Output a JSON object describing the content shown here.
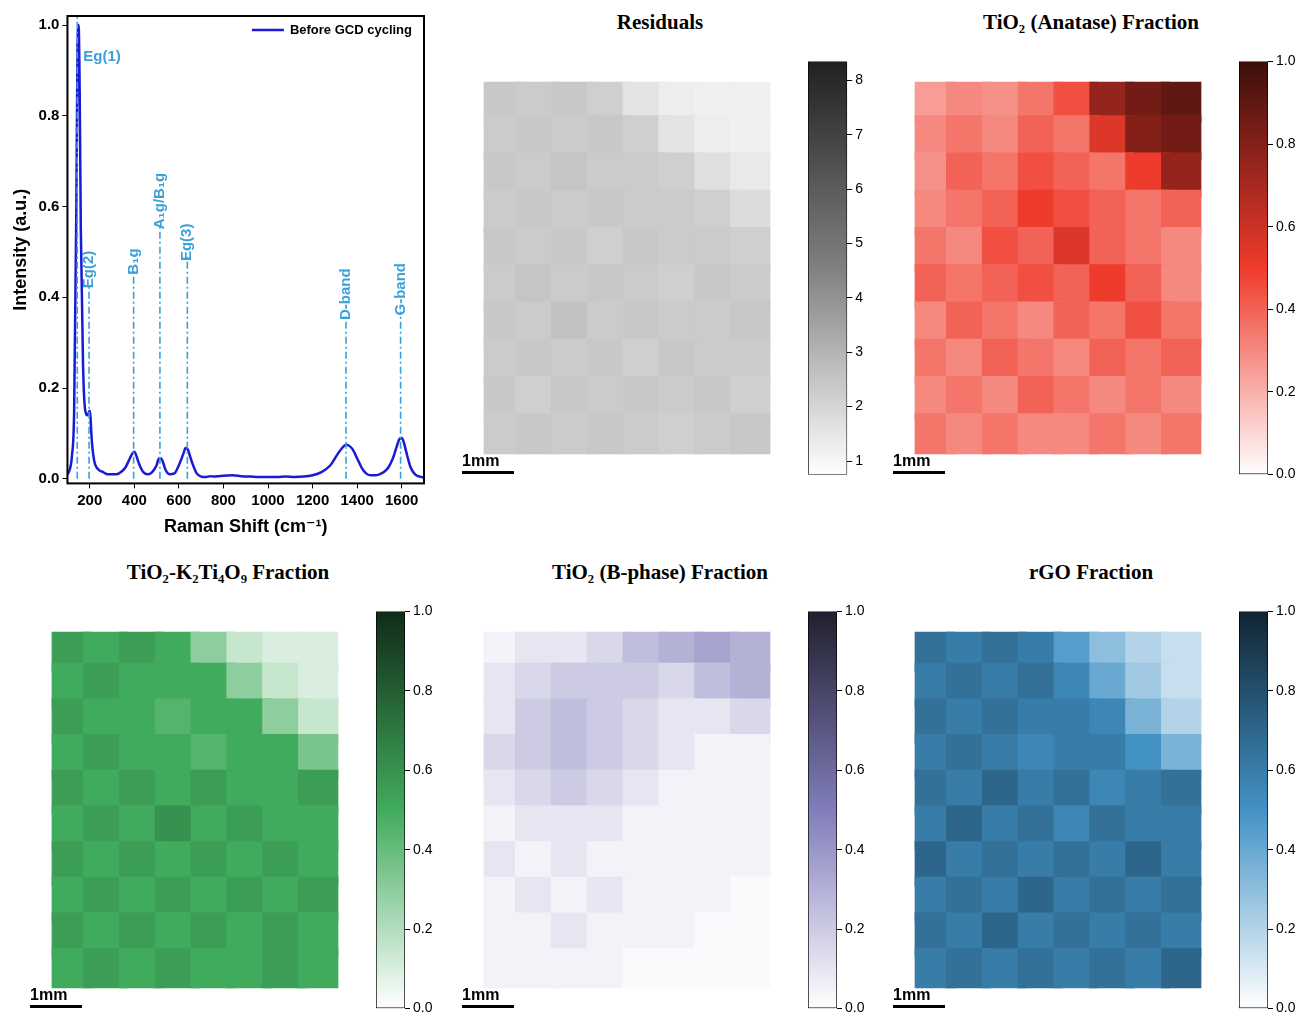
{
  "chart_data": [
    {
      "type": "line",
      "x_label": "Raman Shift (cm⁻¹)",
      "y_label": "Intensity (a.u.)",
      "x": [
        100,
        110,
        120,
        130,
        140,
        145,
        150,
        155,
        160,
        170,
        180,
        190,
        200,
        210,
        220,
        240,
        260,
        280,
        300,
        320,
        340,
        360,
        380,
        390,
        400,
        410,
        420,
        440,
        460,
        480,
        500,
        510,
        520,
        530,
        540,
        560,
        580,
        600,
        620,
        630,
        640,
        650,
        660,
        680,
        700,
        720,
        740,
        760,
        780,
        800,
        840,
        880,
        920,
        960,
        1000,
        1040,
        1080,
        1120,
        1160,
        1200,
        1240,
        1280,
        1300,
        1320,
        1340,
        1350,
        1360,
        1380,
        1400,
        1420,
        1440,
        1460,
        1480,
        1500,
        1520,
        1540,
        1560,
        1580,
        1590,
        1600,
        1610,
        1620,
        1640,
        1660,
        1680,
        1700
      ],
      "series": [
        {
          "name": "Before GCD cycling",
          "color": "#1a1ad6",
          "values": [
            0.01,
            0.02,
            0.05,
            0.15,
            0.6,
            0.95,
            1.0,
            0.85,
            0.55,
            0.25,
            0.15,
            0.14,
            0.15,
            0.08,
            0.04,
            0.02,
            0.015,
            0.01,
            0.01,
            0.01,
            0.015,
            0.025,
            0.045,
            0.055,
            0.06,
            0.05,
            0.035,
            0.015,
            0.01,
            0.015,
            0.03,
            0.045,
            0.045,
            0.035,
            0.02,
            0.01,
            0.012,
            0.03,
            0.055,
            0.068,
            0.065,
            0.05,
            0.035,
            0.012,
            0.005,
            0.004,
            0.006,
            0.005,
            0.006,
            0.007,
            0.008,
            0.006,
            0.005,
            0.004,
            0.004,
            0.004,
            0.005,
            0.004,
            0.005,
            0.008,
            0.015,
            0.03,
            0.045,
            0.06,
            0.072,
            0.075,
            0.074,
            0.065,
            0.045,
            0.025,
            0.012,
            0.008,
            0.008,
            0.01,
            0.015,
            0.025,
            0.045,
            0.075,
            0.088,
            0.09,
            0.08,
            0.06,
            0.025,
            0.01,
            0.005,
            0.003
          ]
        }
      ],
      "xlim": [
        100,
        1700
      ],
      "xticks": [
        200,
        400,
        600,
        800,
        1000,
        1200,
        1400,
        1600
      ],
      "ylim": [
        -0.01,
        1.02
      ],
      "yticks": [
        {
          "value": 0,
          "label": "0.0"
        },
        0.2,
        0.4,
        0.6,
        0.8,
        {
          "value": 1,
          "label": "1.0"
        }
      ],
      "legend": "upper right",
      "annotations": [
        {
          "text": "Eg(1)",
          "x": 144,
          "y": 0.93
        },
        {
          "text": "Eg(2)",
          "x": 197,
          "y": 0.42
        },
        {
          "text": "B₁g",
          "x": 397,
          "y": 0.45
        },
        {
          "text": "A₁g/B₁g",
          "x": 515,
          "y": 0.55
        },
        {
          "text": "Eg(3)",
          "x": 638,
          "y": 0.48
        },
        {
          "text": "D-band",
          "x": 1350,
          "y": 0.35
        },
        {
          "text": "G-band",
          "x": 1595,
          "y": 0.36
        }
      ]
    },
    {
      "type": "heatmap",
      "title": "Residuals",
      "color": "#808080",
      "scale_bar": "1mm",
      "tick_labels": false,
      "colorbar": {
        "lim": [
          0.75,
          8.35
        ],
        "ticks": [
          1,
          2,
          3,
          4,
          5,
          6,
          7,
          8
        ]
      },
      "cells": [
        [
          2.4,
          2.3,
          2.4,
          2.2,
          1.6,
          1.3,
          1.2,
          1.2
        ],
        [
          2.3,
          2.4,
          2.3,
          2.4,
          2.2,
          1.6,
          1.3,
          1.2
        ],
        [
          2.4,
          2.3,
          2.5,
          2.3,
          2.3,
          2.2,
          1.7,
          1.4
        ],
        [
          2.3,
          2.4,
          2.3,
          2.4,
          2.3,
          2.3,
          2.2,
          1.8
        ],
        [
          2.4,
          2.3,
          2.4,
          2.2,
          2.4,
          2.3,
          2.3,
          2.2
        ],
        [
          2.3,
          2.5,
          2.3,
          2.4,
          2.3,
          2.2,
          2.4,
          2.3
        ],
        [
          2.4,
          2.3,
          2.6,
          2.3,
          2.4,
          2.3,
          2.3,
          2.4
        ],
        [
          2.3,
          2.4,
          2.3,
          2.4,
          2.2,
          2.4,
          2.3,
          2.3
        ],
        [
          2.4,
          2.2,
          2.4,
          2.3,
          2.4,
          2.3,
          2.4,
          2.2
        ],
        [
          2.3,
          2.4,
          2.3,
          2.4,
          2.3,
          2.2,
          2.3,
          2.4
        ]
      ]
    },
    {
      "type": "heatmap",
      "title": "TiO₂ (Anatase) Fraction",
      "color": "#ef3b2c",
      "scale_bar": "1mm",
      "tick_labels": false,
      "colorbar": {
        "lim": [
          0,
          1
        ],
        "ticks": [
          {
            "value": 0,
            "label": "0.0"
          },
          0.2,
          0.4,
          0.6,
          0.8,
          {
            "value": 1,
            "label": "1.0"
          }
        ]
      },
      "cells": [
        [
          0.25,
          0.3,
          0.28,
          0.35,
          0.45,
          0.75,
          0.85,
          0.9
        ],
        [
          0.3,
          0.35,
          0.3,
          0.4,
          0.35,
          0.55,
          0.8,
          0.85
        ],
        [
          0.28,
          0.4,
          0.35,
          0.45,
          0.4,
          0.35,
          0.5,
          0.75
        ],
        [
          0.3,
          0.35,
          0.4,
          0.5,
          0.45,
          0.4,
          0.35,
          0.4
        ],
        [
          0.35,
          0.3,
          0.45,
          0.4,
          0.55,
          0.4,
          0.35,
          0.3
        ],
        [
          0.4,
          0.35,
          0.4,
          0.45,
          0.4,
          0.5,
          0.4,
          0.3
        ],
        [
          0.3,
          0.4,
          0.35,
          0.3,
          0.4,
          0.35,
          0.45,
          0.35
        ],
        [
          0.35,
          0.3,
          0.4,
          0.35,
          0.3,
          0.4,
          0.35,
          0.4
        ],
        [
          0.3,
          0.35,
          0.3,
          0.4,
          0.35,
          0.3,
          0.35,
          0.3
        ],
        [
          0.35,
          0.3,
          0.35,
          0.3,
          0.3,
          0.35,
          0.3,
          0.35
        ]
      ]
    },
    {
      "type": "heatmap",
      "title": "TiO₂-K₂Ti₄O₉ Fraction",
      "color": "#41ab5d",
      "scale_bar": "1mm",
      "tick_labels": false,
      "colorbar": {
        "lim": [
          0,
          1
        ],
        "ticks": [
          {
            "value": 0,
            "label": "0.0"
          },
          0.2,
          0.4,
          0.6,
          0.8,
          {
            "value": 1,
            "label": "1.0"
          }
        ]
      },
      "cells": [
        [
          0.55,
          0.5,
          0.55,
          0.5,
          0.3,
          0.15,
          0.1,
          0.1
        ],
        [
          0.5,
          0.55,
          0.5,
          0.5,
          0.5,
          0.3,
          0.15,
          0.1
        ],
        [
          0.55,
          0.5,
          0.5,
          0.45,
          0.5,
          0.5,
          0.3,
          0.15
        ],
        [
          0.5,
          0.55,
          0.5,
          0.5,
          0.45,
          0.5,
          0.5,
          0.35
        ],
        [
          0.55,
          0.5,
          0.55,
          0.5,
          0.55,
          0.5,
          0.5,
          0.55
        ],
        [
          0.5,
          0.55,
          0.5,
          0.6,
          0.5,
          0.55,
          0.5,
          0.5
        ],
        [
          0.55,
          0.5,
          0.55,
          0.5,
          0.55,
          0.5,
          0.55,
          0.5
        ],
        [
          0.5,
          0.55,
          0.5,
          0.55,
          0.5,
          0.55,
          0.5,
          0.55
        ],
        [
          0.55,
          0.5,
          0.55,
          0.5,
          0.55,
          0.5,
          0.55,
          0.5
        ],
        [
          0.5,
          0.55,
          0.5,
          0.55,
          0.5,
          0.5,
          0.55,
          0.5
        ]
      ]
    },
    {
      "type": "heatmap",
      "title": "TiO₂ (B-phase) Fraction",
      "color": "#807dba",
      "scale_bar": "1mm",
      "tick_labels": false,
      "colorbar": {
        "lim": [
          0,
          1
        ],
        "ticks": [
          {
            "value": 0,
            "label": "0.0"
          },
          0.2,
          0.4,
          0.6,
          0.8,
          {
            "value": 1,
            "label": "1.0"
          }
        ]
      },
      "cells": [
        [
          0.05,
          0.1,
          0.1,
          0.15,
          0.25,
          0.3,
          0.35,
          0.3
        ],
        [
          0.1,
          0.15,
          0.2,
          0.2,
          0.2,
          0.15,
          0.25,
          0.3
        ],
        [
          0.1,
          0.2,
          0.25,
          0.2,
          0.15,
          0.1,
          0.1,
          0.15
        ],
        [
          0.15,
          0.2,
          0.25,
          0.2,
          0.15,
          0.1,
          0.05,
          0.05
        ],
        [
          0.1,
          0.15,
          0.2,
          0.15,
          0.1,
          0.05,
          0.05,
          0.05
        ],
        [
          0.05,
          0.1,
          0.1,
          0.1,
          0.05,
          0.05,
          0.05,
          0.05
        ],
        [
          0.1,
          0.05,
          0.1,
          0.05,
          0.05,
          0.05,
          0.05,
          0.05
        ],
        [
          0.05,
          0.1,
          0.05,
          0.1,
          0.05,
          0.05,
          0.05,
          0.02
        ],
        [
          0.05,
          0.05,
          0.1,
          0.05,
          0.05,
          0.05,
          0.02,
          0.02
        ],
        [
          0.05,
          0.05,
          0.05,
          0.05,
          0.02,
          0.02,
          0.02,
          0.02
        ]
      ]
    },
    {
      "type": "heatmap",
      "title": "rGO Fraction",
      "color": "#4292c6",
      "scale_bar": "1mm",
      "tick_labels": false,
      "colorbar": {
        "lim": [
          0,
          1
        ],
        "ticks": [
          {
            "value": 0,
            "label": "0.0"
          },
          0.2,
          0.4,
          0.6,
          0.8,
          {
            "value": 1,
            "label": "1.0"
          }
        ]
      },
      "cells": [
        [
          0.65,
          0.6,
          0.65,
          0.6,
          0.45,
          0.3,
          0.2,
          0.15
        ],
        [
          0.6,
          0.65,
          0.6,
          0.65,
          0.55,
          0.4,
          0.25,
          0.15
        ],
        [
          0.65,
          0.6,
          0.65,
          0.6,
          0.6,
          0.55,
          0.35,
          0.2
        ],
        [
          0.6,
          0.65,
          0.6,
          0.55,
          0.6,
          0.6,
          0.5,
          0.35
        ],
        [
          0.65,
          0.6,
          0.7,
          0.6,
          0.65,
          0.55,
          0.6,
          0.65
        ],
        [
          0.6,
          0.7,
          0.6,
          0.65,
          0.55,
          0.65,
          0.6,
          0.6
        ],
        [
          0.7,
          0.6,
          0.65,
          0.6,
          0.65,
          0.6,
          0.7,
          0.6
        ],
        [
          0.6,
          0.65,
          0.6,
          0.7,
          0.6,
          0.65,
          0.6,
          0.65
        ],
        [
          0.65,
          0.6,
          0.7,
          0.6,
          0.65,
          0.6,
          0.65,
          0.6
        ],
        [
          0.6,
          0.65,
          0.6,
          0.65,
          0.6,
          0.65,
          0.6,
          0.7
        ]
      ]
    }
  ]
}
